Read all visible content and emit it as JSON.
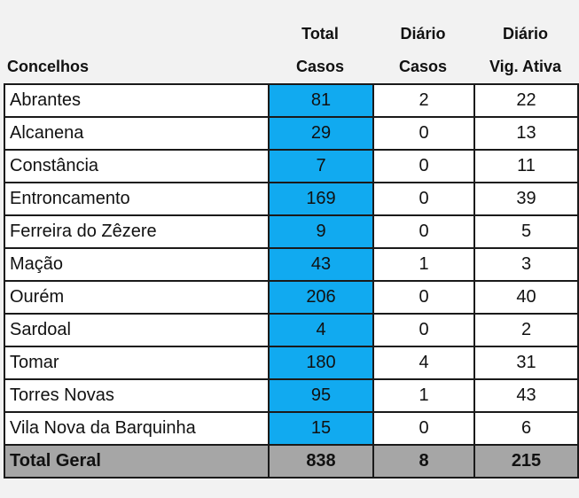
{
  "header": {
    "concelhos": "Concelhos",
    "total_line1": "Total",
    "total_line2": "Casos",
    "diario_line1": "Diário",
    "diario_line2": "Casos",
    "vig_line1": "Diário",
    "vig_line2": "Vig. Ativa"
  },
  "rows": [
    {
      "name": "Abrantes",
      "total": "81",
      "daily": "2",
      "vig": "22"
    },
    {
      "name": "Alcanena",
      "total": "29",
      "daily": "0",
      "vig": "13"
    },
    {
      "name": "Constância",
      "total": "7",
      "daily": "0",
      "vig": "11"
    },
    {
      "name": "Entroncamento",
      "total": "169",
      "daily": "0",
      "vig": "39"
    },
    {
      "name": "Ferreira do Zêzere",
      "total": "9",
      "daily": "0",
      "vig": "5"
    },
    {
      "name": "Mação",
      "total": "43",
      "daily": "1",
      "vig": "3"
    },
    {
      "name": "Ourém",
      "total": "206",
      "daily": "0",
      "vig": "40"
    },
    {
      "name": "Sardoal",
      "total": "4",
      "daily": "0",
      "vig": "2"
    },
    {
      "name": "Tomar",
      "total": "180",
      "daily": "4",
      "vig": "31"
    },
    {
      "name": "Torres Novas",
      "total": "95",
      "daily": "1",
      "vig": "43"
    },
    {
      "name": "Vila Nova da Barquinha",
      "total": "15",
      "daily": "0",
      "vig": "6"
    }
  ],
  "totals": {
    "name": "Total Geral",
    "total": "838",
    "daily": "8",
    "vig": "215"
  },
  "colors": {
    "total_column": "#11aaf0",
    "totals_row": "#a6a6a6",
    "background": "#f2f2f2"
  }
}
